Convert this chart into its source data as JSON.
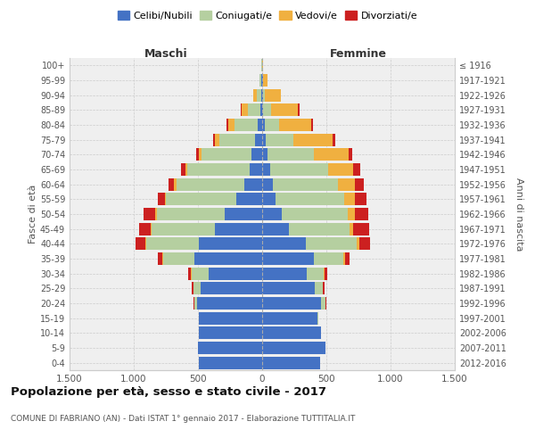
{
  "age_groups": [
    "0-4",
    "5-9",
    "10-14",
    "15-19",
    "20-24",
    "25-29",
    "30-34",
    "35-39",
    "40-44",
    "45-49",
    "50-54",
    "55-59",
    "60-64",
    "65-69",
    "70-74",
    "75-79",
    "80-84",
    "85-89",
    "90-94",
    "95-99",
    "100+"
  ],
  "birth_years": [
    "2012-2016",
    "2007-2011",
    "2002-2006",
    "1997-2001",
    "1992-1996",
    "1987-1991",
    "1982-1986",
    "1977-1981",
    "1972-1976",
    "1967-1971",
    "1962-1966",
    "1957-1961",
    "1952-1956",
    "1947-1951",
    "1942-1946",
    "1937-1941",
    "1932-1936",
    "1927-1931",
    "1922-1926",
    "1917-1921",
    "≤ 1916"
  ],
  "maschi": {
    "celibi": [
      490,
      500,
      490,
      490,
      510,
      480,
      420,
      530,
      490,
      370,
      290,
      200,
      140,
      100,
      80,
      55,
      35,
      15,
      8,
      8,
      2
    ],
    "coniugati": [
      0,
      0,
      0,
      0,
      15,
      55,
      130,
      240,
      410,
      490,
      530,
      550,
      530,
      480,
      390,
      280,
      180,
      95,
      35,
      10,
      2
    ],
    "vedovi": [
      0,
      0,
      0,
      0,
      2,
      3,
      5,
      5,
      8,
      10,
      10,
      10,
      15,
      20,
      25,
      30,
      50,
      50,
      25,
      5,
      2
    ],
    "divorziati": [
      0,
      0,
      0,
      0,
      5,
      10,
      20,
      35,
      75,
      85,
      95,
      55,
      45,
      30,
      20,
      20,
      10,
      5,
      2,
      0,
      0
    ]
  },
  "femmine": {
    "nubili": [
      450,
      490,
      460,
      430,
      460,
      410,
      345,
      405,
      340,
      205,
      155,
      105,
      80,
      60,
      45,
      30,
      20,
      10,
      8,
      5,
      2
    ],
    "coniugate": [
      0,
      0,
      0,
      5,
      30,
      60,
      135,
      230,
      395,
      475,
      510,
      535,
      510,
      455,
      355,
      210,
      110,
      60,
      15,
      5,
      0
    ],
    "vedove": [
      0,
      0,
      0,
      0,
      3,
      5,
      5,
      10,
      20,
      30,
      60,
      80,
      130,
      195,
      275,
      310,
      250,
      210,
      120,
      30,
      2
    ],
    "divorziate": [
      0,
      0,
      0,
      0,
      5,
      10,
      20,
      35,
      85,
      120,
      100,
      95,
      75,
      55,
      25,
      20,
      15,
      10,
      3,
      0,
      0
    ]
  },
  "colors": {
    "celibi_nubili": "#4472c4",
    "coniugati": "#b5cfa0",
    "vedovi": "#f0b040",
    "divorziati": "#cc2020"
  },
  "title": "Popolazione per età, sesso e stato civile - 2017",
  "subtitle": "COMUNE DI FABRIANO (AN) - Dati ISTAT 1° gennaio 2017 - Elaborazione TUTTITALIA.IT",
  "xlabel_left": "Maschi",
  "xlabel_right": "Femmine",
  "ylabel_left": "Fasce di età",
  "ylabel_right": "Anni di nascita",
  "xlim": 1500,
  "bg_color": "#ffffff",
  "plot_bg": "#efefef"
}
